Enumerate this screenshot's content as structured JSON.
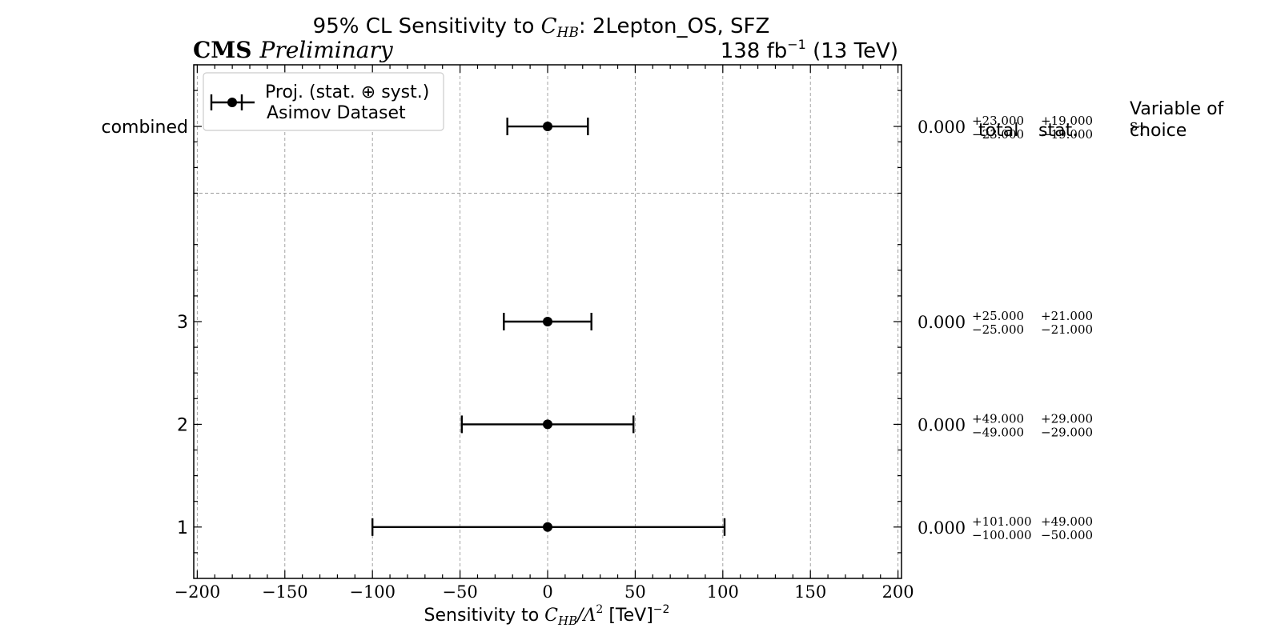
{
  "header": {
    "title_prefix": "95% CL Sensitivity to ",
    "title_coef_main": "C",
    "title_coef_sub": "HB",
    "title_suffix": ": 2Lepton_OS, SFZ",
    "cms_label": "CMS",
    "cms_sublabel": "Preliminary",
    "lumi_value": "138 fb",
    "lumi_exp": "−1",
    "lumi_energy": " (13 TeV)"
  },
  "legend": {
    "line1": "Proj. (stat. ⊕ syst.)",
    "line2": "Asimov Dataset"
  },
  "xaxis": {
    "label_prefix": "Sensitivity to ",
    "label_coef_main": "C",
    "label_coef_sub": "HB",
    "label_middle": "/Λ",
    "label_middle_exp": "2",
    "label_unit": " [TeV]",
    "label_unit_exp": "−2"
  },
  "table_headers": {
    "total": "total",
    "stat": "stat.",
    "variable_line1": "Variable of",
    "variable_line2": "choice"
  },
  "variable_of_choice": {
    "main": "s",
    "sub": "T"
  },
  "chart_data": {
    "type": "errorbar",
    "orientation": "horizontal",
    "xlim": [
      -202,
      202
    ],
    "ylim": [
      0.5,
      5.5
    ],
    "xticks": [
      -200,
      -150,
      -100,
      -50,
      0,
      50,
      100,
      150,
      200
    ],
    "xtick_labels": [
      "−200",
      "−150",
      "−100",
      "−50",
      "0",
      "50",
      "100",
      "150",
      "200"
    ],
    "grid": true,
    "separator_y": 4.25,
    "rows": [
      {
        "label": "combined",
        "y": 4.9,
        "center": 0,
        "lo": -23,
        "hi": 23,
        "center_text": "0.000",
        "total_plus": "+23.000",
        "total_minus": "−23.000",
        "stat_plus": "+19.000",
        "stat_minus": "−19.000"
      },
      {
        "label": "3",
        "y": 3,
        "center": 0,
        "lo": -25,
        "hi": 25,
        "center_text": "0.000",
        "total_plus": "+25.000",
        "total_minus": "−25.000",
        "stat_plus": "+21.000",
        "stat_minus": "−21.000"
      },
      {
        "label": "2",
        "y": 2,
        "center": 0,
        "lo": -49,
        "hi": 49,
        "center_text": "0.000",
        "total_plus": "+49.000",
        "total_minus": "−49.000",
        "stat_plus": "+29.000",
        "stat_minus": "−29.000"
      },
      {
        "label": "1",
        "y": 1,
        "center": 0,
        "lo": -100,
        "hi": 101,
        "center_text": "0.000",
        "total_plus": "+101.000",
        "total_minus": "−100.000",
        "stat_plus": "+49.000",
        "stat_minus": "−50.000"
      }
    ]
  }
}
